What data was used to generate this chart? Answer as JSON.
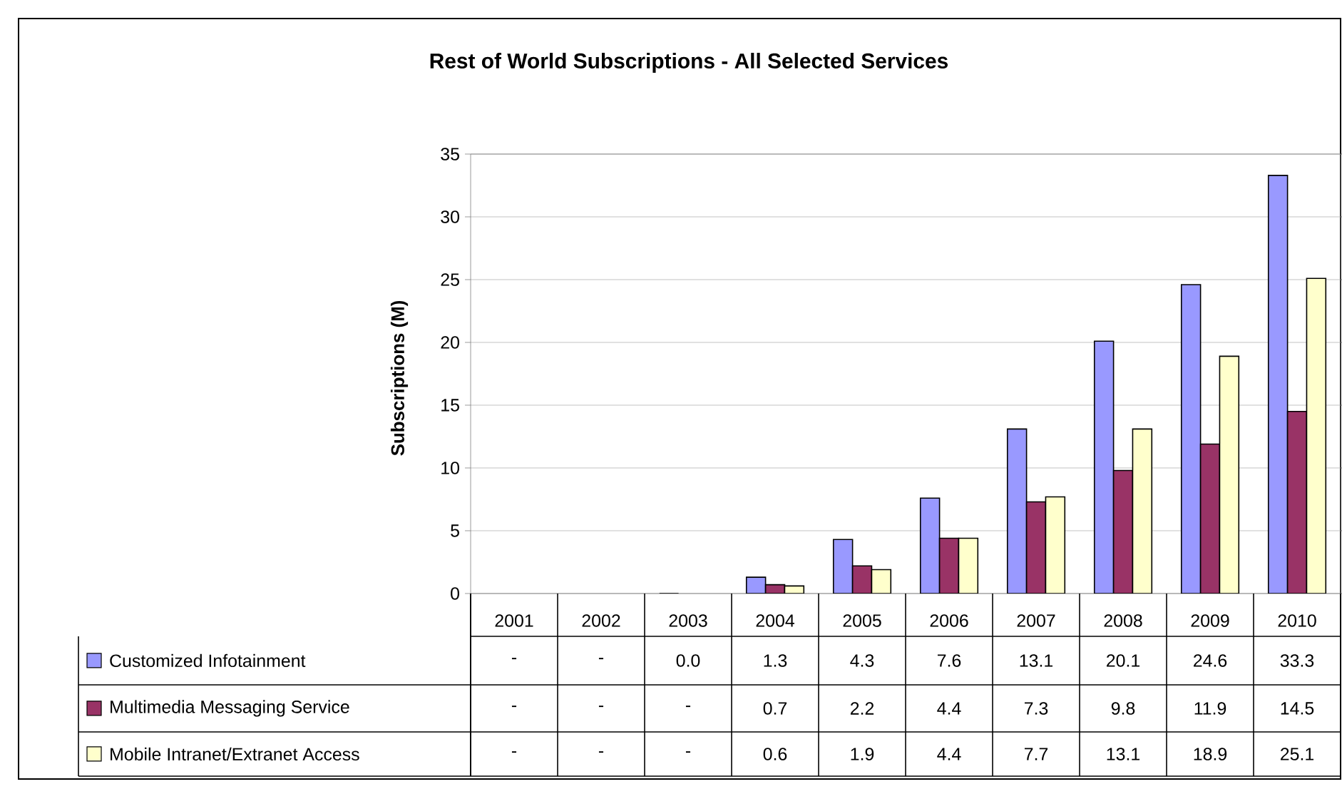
{
  "chart_data": {
    "type": "bar",
    "title": "Rest of World Subscriptions - All Selected Services",
    "ylabel": "Subscriptions (M)",
    "categories": [
      "2001",
      "2002",
      "2003",
      "2004",
      "2005",
      "2006",
      "2007",
      "2008",
      "2009",
      "2010"
    ],
    "series": [
      {
        "name": "Customized Infotainment",
        "color": "#9999ff",
        "values": [
          null,
          null,
          0.0,
          1.3,
          4.3,
          7.6,
          13.1,
          20.1,
          24.6,
          33.3
        ],
        "value_labels": [
          "-",
          "-",
          "0.0",
          "1.3",
          "4.3",
          "7.6",
          "13.1",
          "20.1",
          "24.6",
          "33.3"
        ]
      },
      {
        "name": "Multimedia Messaging Service",
        "color": "#993366",
        "values": [
          null,
          null,
          null,
          0.7,
          2.2,
          4.4,
          7.3,
          9.8,
          11.9,
          14.5
        ],
        "value_labels": [
          "-",
          "-",
          "-",
          "0.7",
          "2.2",
          "4.4",
          "7.3",
          "9.8",
          "11.9",
          "14.5"
        ]
      },
      {
        "name": "Mobile Intranet/Extranet Access",
        "color": "#ffffcc",
        "values": [
          null,
          null,
          null,
          0.6,
          1.9,
          4.4,
          7.7,
          13.1,
          18.9,
          25.1
        ],
        "value_labels": [
          "-",
          "-",
          "-",
          "0.6",
          "1.9",
          "4.4",
          "7.7",
          "13.1",
          "18.9",
          "25.1"
        ]
      }
    ],
    "ylim": [
      0,
      35
    ],
    "yticks": [
      0,
      5,
      10,
      15,
      20,
      25,
      30,
      35
    ],
    "grid": "y",
    "legend": "bottom"
  }
}
